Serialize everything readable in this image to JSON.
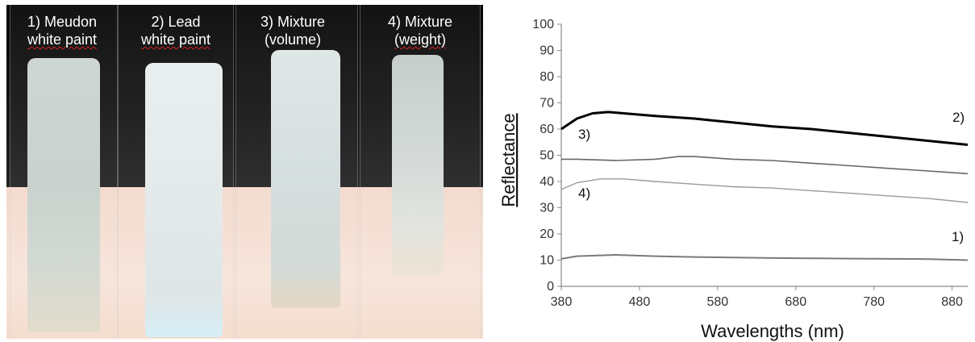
{
  "photo": {
    "labels": [
      {
        "line1": "1) Meudon",
        "line2": "white paint"
      },
      {
        "line1": "2) Lead",
        "line2": "white paint"
      },
      {
        "line1": "3) Mixture",
        "line2": "(volume)"
      },
      {
        "line1": "4) Mixture",
        "line2": "(weight)"
      }
    ]
  },
  "chart_data": {
    "type": "line",
    "title": "",
    "xlabel": "Wavelengths (nm)",
    "ylabel": "Reflectance",
    "xlim": [
      380,
      900
    ],
    "ylim": [
      0,
      100
    ],
    "xticks": [
      380,
      480,
      580,
      680,
      780,
      880
    ],
    "yticks": [
      0,
      10,
      20,
      30,
      40,
      50,
      60,
      70,
      80,
      90,
      100
    ],
    "grid": false,
    "legend": "none",
    "series": [
      {
        "label": "1)",
        "color": "#7a7a7a",
        "x": [
          380,
          400,
          450,
          500,
          550,
          600,
          650,
          700,
          750,
          800,
          850,
          900
        ],
        "y": [
          10.5,
          11.5,
          12,
          11.5,
          11.2,
          11,
          10.8,
          10.7,
          10.6,
          10.5,
          10.4,
          10
        ]
      },
      {
        "label": "2)",
        "color": "#000000",
        "x": [
          380,
          400,
          420,
          440,
          460,
          500,
          550,
          600,
          650,
          700,
          750,
          800,
          850,
          900
        ],
        "y": [
          60,
          64,
          66,
          66.5,
          66,
          65,
          64,
          62.5,
          61,
          60,
          58.5,
          57,
          55.5,
          54
        ]
      },
      {
        "label": "3)",
        "color": "#666666",
        "x": [
          380,
          400,
          450,
          500,
          530,
          550,
          600,
          650,
          700,
          750,
          800,
          850,
          900
        ],
        "y": [
          48.5,
          48.5,
          48,
          48.5,
          49.5,
          49.5,
          48.5,
          48,
          47,
          46,
          45,
          44,
          43
        ]
      },
      {
        "label": "4)",
        "color": "#9a9a9a",
        "x": [
          380,
          400,
          430,
          460,
          500,
          550,
          600,
          650,
          700,
          750,
          800,
          850,
          900
        ],
        "y": [
          37,
          39.5,
          41,
          41,
          40,
          39,
          38,
          37.5,
          36.5,
          35.5,
          34.5,
          33.5,
          32
        ]
      }
    ]
  }
}
